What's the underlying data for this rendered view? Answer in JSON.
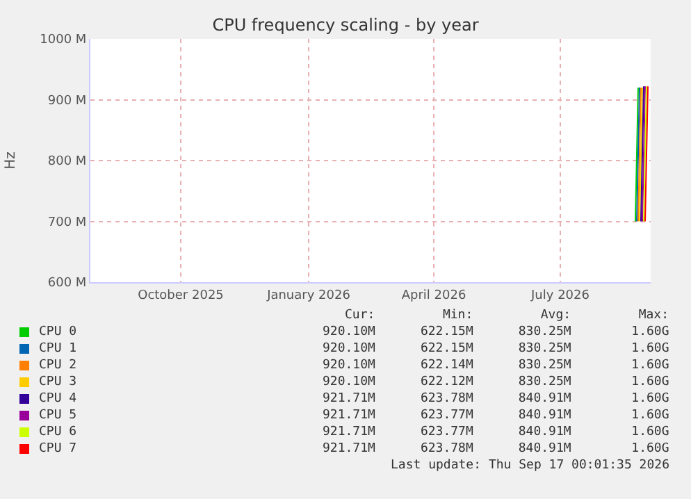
{
  "chart_data": {
    "type": "line",
    "title": "CPU frequency scaling - by year",
    "ylabel": "Hz",
    "xlim": [
      "2025-08-12",
      "2026-09-19"
    ],
    "xticks": [
      {
        "value": "2025-10-16",
        "label": "October 2025"
      },
      {
        "value": "2026-01-16",
        "label": "January 2026"
      },
      {
        "value": "2026-04-16",
        "label": "April 2026"
      },
      {
        "value": "2026-07-16",
        "label": "July 2026"
      }
    ],
    "ylim": [
      600000000,
      1000000000
    ],
    "yticks": [
      {
        "value": 600000000,
        "label": "600 M"
      },
      {
        "value": 700000000,
        "label": "700 M"
      },
      {
        "value": 800000000,
        "label": "800 M"
      },
      {
        "value": 900000000,
        "label": "900 M"
      },
      {
        "value": 1000000000,
        "label": "1000 M"
      }
    ],
    "grid": true,
    "legend": "bottom",
    "marker": "none",
    "line_style": "solid",
    "series": [
      {
        "name": "CPU 0",
        "color": "#00cc00",
        "x": [
          "2026-09-08",
          "2026-09-10"
        ],
        "values": [
          700000000,
          920000000
        ]
      },
      {
        "name": "CPU 1",
        "color": "#0066b3",
        "x": [
          "2026-09-09",
          "2026-09-11"
        ],
        "values": [
          700000000,
          920000000
        ]
      },
      {
        "name": "CPU 2",
        "color": "#ff8000",
        "x": [
          "2026-09-10",
          "2026-09-12"
        ],
        "values": [
          700000000,
          920000000
        ]
      },
      {
        "name": "CPU 3",
        "color": "#ffcc00",
        "x": [
          "2026-09-11",
          "2026-09-13"
        ],
        "values": [
          700000000,
          920000000
        ]
      },
      {
        "name": "CPU 4",
        "color": "#330099",
        "x": [
          "2026-09-12",
          "2026-09-14"
        ],
        "values": [
          700000000,
          922000000
        ]
      },
      {
        "name": "CPU 5",
        "color": "#990099",
        "x": [
          "2026-09-13",
          "2026-09-15"
        ],
        "values": [
          700000000,
          922000000
        ]
      },
      {
        "name": "CPU 6",
        "color": "#ccff00",
        "x": [
          "2026-09-14",
          "2026-09-16"
        ],
        "values": [
          700000000,
          922000000
        ]
      },
      {
        "name": "CPU 7",
        "color": "#ff0000",
        "x": [
          "2026-09-15",
          "2026-09-17"
        ],
        "values": [
          700000000,
          922000000
        ]
      }
    ],
    "annotations": [
      "Cur:         Min:         Avg:         Max:",
      "920.10M      622.15M      830.25M        1.60G",
      "920.10M      622.15M      830.25M        1.60G",
      "920.10M      622.14M      830.25M        1.60G",
      "920.10M      622.12M      830.25M        1.60G",
      "921.71M      623.78M      840.91M        1.60G",
      "921.71M      623.77M      840.91M        1.60G",
      "921.71M      623.77M      840.91M        1.60G",
      "921.71M      623.78M      840.91M        1.60G",
      "Last update: Thu Sep 17 00:01:35 2026"
    ]
  }
}
